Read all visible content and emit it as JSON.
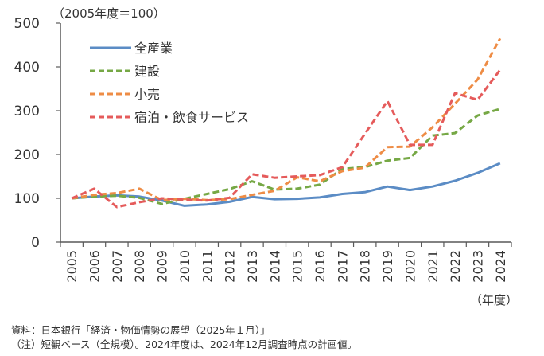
{
  "chart_data": {
    "type": "line",
    "title": "",
    "unit_note": "（2005年度＝100）",
    "xlabel": "（年度）",
    "ylabel": "",
    "ylim": [
      0,
      500
    ],
    "yticks": [
      0,
      100,
      200,
      300,
      400,
      500
    ],
    "grid": false,
    "legend_position": "top-left",
    "categories": [
      "2005",
      "2006",
      "2007",
      "2008",
      "2009",
      "2010",
      "2011",
      "2012",
      "2013",
      "2014",
      "2015",
      "2016",
      "2017",
      "2018",
      "2019",
      "2020",
      "2021",
      "2022",
      "2023",
      "2024"
    ],
    "series": [
      {
        "name": "全産業",
        "style": "solid",
        "color": "#5B8CC5",
        "values": [
          100,
          104,
          107,
          104,
          95,
          83,
          86,
          92,
          103,
          98,
          99,
          102,
          110,
          114,
          127,
          119,
          127,
          140,
          158,
          180
        ]
      },
      {
        "name": "建設",
        "style": "dashed",
        "color": "#76A845",
        "values": [
          100,
          104,
          106,
          101,
          87,
          99,
          110,
          121,
          139,
          120,
          122,
          131,
          167,
          171,
          186,
          192,
          243,
          249,
          289,
          304
        ]
      },
      {
        "name": "小売",
        "style": "dashed",
        "color": "#EE8C45",
        "values": [
          100,
          108,
          112,
          122,
          96,
          99,
          96,
          98,
          108,
          117,
          148,
          139,
          162,
          170,
          217,
          218,
          262,
          316,
          371,
          465
        ]
      },
      {
        "name": "宿泊・飲食サービス",
        "style": "dashed",
        "color": "#E55B5B",
        "values": [
          100,
          122,
          80,
          91,
          100,
          97,
          95,
          101,
          155,
          147,
          150,
          153,
          171,
          247,
          322,
          222,
          222,
          340,
          325,
          393
        ]
      }
    ]
  },
  "footnotes": {
    "source": "資料：日本銀行「経済・物価情勢の展望（2025年１月）」",
    "note": "（注）短観ベース（全規模）。2024年度は、2024年12月調査時点の計画値。"
  }
}
